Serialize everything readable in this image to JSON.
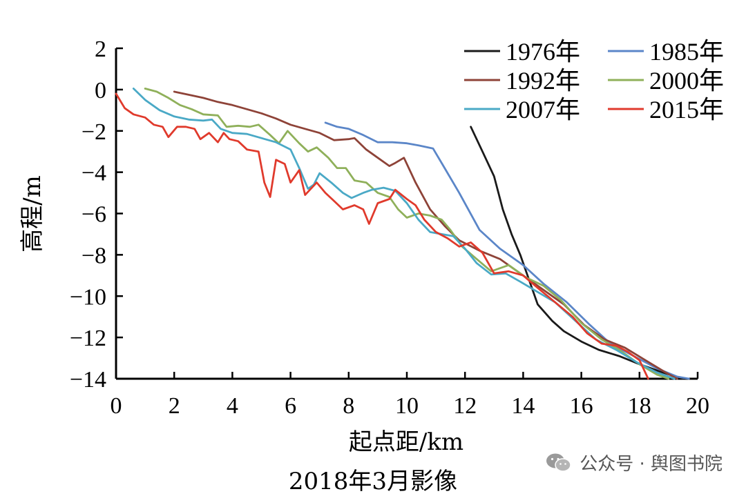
{
  "chart_data": {
    "type": "line",
    "title": "",
    "xlabel": "起点距/km",
    "ylabel": "高程/m",
    "xlim": [
      0,
      20
    ],
    "ylim": [
      -14,
      2
    ],
    "xticks": [
      "0",
      "2",
      "4",
      "6",
      "8",
      "10",
      "12",
      "14",
      "16",
      "18",
      "20"
    ],
    "yticks": [
      "2",
      "0",
      "−2",
      "−4",
      "−6",
      "−8",
      "−10",
      "−12",
      "−14"
    ],
    "grid": false,
    "legend_position": "top-right",
    "series": [
      {
        "name": "1976年",
        "color": "#1a1a1a",
        "points": [
          [
            12.2,
            -1.8
          ],
          [
            12.6,
            -3.0
          ],
          [
            13.0,
            -4.2
          ],
          [
            13.3,
            -5.8
          ],
          [
            13.6,
            -7.0
          ],
          [
            13.9,
            -8.0
          ],
          [
            14.2,
            -9.2
          ],
          [
            14.5,
            -10.4
          ],
          [
            15.0,
            -11.2
          ],
          [
            15.4,
            -11.7
          ],
          [
            16.0,
            -12.2
          ],
          [
            16.6,
            -12.6
          ],
          [
            17.3,
            -12.9
          ],
          [
            18.0,
            -13.3
          ],
          [
            18.8,
            -13.7
          ],
          [
            19.5,
            -14.0
          ]
        ]
      },
      {
        "name": "1985年",
        "color": "#5b86c8",
        "points": [
          [
            7.2,
            -1.6
          ],
          [
            7.6,
            -1.8
          ],
          [
            8.0,
            -1.9
          ],
          [
            8.5,
            -2.2
          ],
          [
            9.0,
            -2.55
          ],
          [
            9.5,
            -2.55
          ],
          [
            10.0,
            -2.6
          ],
          [
            10.4,
            -2.7
          ],
          [
            10.9,
            -2.85
          ],
          [
            11.3,
            -3.8
          ],
          [
            11.8,
            -5.0
          ],
          [
            12.5,
            -6.8
          ],
          [
            13.2,
            -7.7
          ],
          [
            14.0,
            -8.5
          ],
          [
            14.7,
            -9.4
          ],
          [
            15.5,
            -10.3
          ],
          [
            16.3,
            -11.4
          ],
          [
            17.0,
            -12.3
          ],
          [
            17.8,
            -12.9
          ],
          [
            18.6,
            -13.5
          ],
          [
            19.3,
            -13.9
          ],
          [
            19.7,
            -14.0
          ]
        ]
      },
      {
        "name": "1992年",
        "color": "#8e4338",
        "points": [
          [
            2.0,
            -0.1
          ],
          [
            2.5,
            -0.25
          ],
          [
            3.0,
            -0.4
          ],
          [
            3.5,
            -0.6
          ],
          [
            4.0,
            -0.75
          ],
          [
            4.5,
            -0.95
          ],
          [
            5.0,
            -1.15
          ],
          [
            5.5,
            -1.4
          ],
          [
            6.0,
            -1.7
          ],
          [
            6.5,
            -1.9
          ],
          [
            7.0,
            -2.1
          ],
          [
            7.5,
            -2.45
          ],
          [
            8.0,
            -2.4
          ],
          [
            8.2,
            -2.35
          ],
          [
            8.6,
            -2.9
          ],
          [
            9.0,
            -3.3
          ],
          [
            9.4,
            -3.7
          ],
          [
            9.6,
            -3.55
          ],
          [
            9.9,
            -3.3
          ],
          [
            10.3,
            -4.5
          ],
          [
            10.8,
            -5.8
          ],
          [
            11.3,
            -6.6
          ],
          [
            11.8,
            -7.3
          ],
          [
            12.5,
            -7.8
          ],
          [
            13.2,
            -8.2
          ],
          [
            14.0,
            -9.0
          ],
          [
            14.7,
            -9.7
          ],
          [
            15.4,
            -10.4
          ],
          [
            16.1,
            -11.4
          ],
          [
            16.8,
            -12.1
          ],
          [
            17.5,
            -12.5
          ],
          [
            18.2,
            -13.1
          ],
          [
            18.9,
            -13.7
          ],
          [
            19.3,
            -14.0
          ]
        ]
      },
      {
        "name": "2000年",
        "color": "#8fb05a",
        "points": [
          [
            1.0,
            0.05
          ],
          [
            1.4,
            -0.1
          ],
          [
            1.8,
            -0.4
          ],
          [
            2.2,
            -0.75
          ],
          [
            2.6,
            -0.95
          ],
          [
            3.0,
            -1.2
          ],
          [
            3.5,
            -1.25
          ],
          [
            3.8,
            -1.8
          ],
          [
            4.2,
            -1.75
          ],
          [
            4.6,
            -1.8
          ],
          [
            4.9,
            -1.7
          ],
          [
            5.3,
            -2.2
          ],
          [
            5.6,
            -2.6
          ],
          [
            5.9,
            -2.0
          ],
          [
            6.3,
            -2.6
          ],
          [
            6.6,
            -3.0
          ],
          [
            6.9,
            -2.8
          ],
          [
            7.3,
            -3.3
          ],
          [
            7.6,
            -3.8
          ],
          [
            7.9,
            -3.8
          ],
          [
            8.2,
            -4.4
          ],
          [
            8.6,
            -4.5
          ],
          [
            9.0,
            -5.0
          ],
          [
            9.4,
            -5.2
          ],
          [
            9.7,
            -5.8
          ],
          [
            10.0,
            -6.2
          ],
          [
            10.4,
            -6.0
          ],
          [
            10.8,
            -6.1
          ],
          [
            11.2,
            -6.3
          ],
          [
            11.5,
            -6.8
          ],
          [
            11.9,
            -7.6
          ],
          [
            12.4,
            -8.2
          ],
          [
            12.9,
            -8.8
          ],
          [
            13.5,
            -8.5
          ],
          [
            14.1,
            -9.1
          ],
          [
            14.7,
            -9.5
          ],
          [
            15.3,
            -10.2
          ],
          [
            16.0,
            -11.3
          ],
          [
            16.7,
            -12.1
          ],
          [
            17.3,
            -12.6
          ],
          [
            18.0,
            -13.3
          ],
          [
            18.6,
            -13.8
          ],
          [
            19.0,
            -14.0
          ]
        ]
      },
      {
        "name": "2007年",
        "color": "#4aa9c6",
        "points": [
          [
            0.6,
            0.05
          ],
          [
            1.0,
            -0.5
          ],
          [
            1.5,
            -1.0
          ],
          [
            2.0,
            -1.3
          ],
          [
            2.5,
            -1.45
          ],
          [
            3.0,
            -1.5
          ],
          [
            3.3,
            -1.45
          ],
          [
            3.6,
            -1.9
          ],
          [
            4.0,
            -2.1
          ],
          [
            4.5,
            -2.15
          ],
          [
            5.0,
            -2.35
          ],
          [
            5.5,
            -2.55
          ],
          [
            6.0,
            -2.9
          ],
          [
            6.3,
            -3.8
          ],
          [
            6.6,
            -4.8
          ],
          [
            6.8,
            -4.6
          ],
          [
            7.0,
            -4.05
          ],
          [
            7.4,
            -4.5
          ],
          [
            7.8,
            -5.0
          ],
          [
            8.1,
            -5.25
          ],
          [
            8.5,
            -5.0
          ],
          [
            8.8,
            -4.85
          ],
          [
            9.2,
            -4.75
          ],
          [
            9.6,
            -4.9
          ],
          [
            10.0,
            -5.5
          ],
          [
            10.4,
            -6.3
          ],
          [
            10.8,
            -6.9
          ],
          [
            11.2,
            -7.0
          ],
          [
            11.6,
            -7.1
          ],
          [
            12.0,
            -7.7
          ],
          [
            12.4,
            -8.4
          ],
          [
            12.9,
            -8.95
          ],
          [
            13.4,
            -8.9
          ],
          [
            13.9,
            -9.3
          ],
          [
            14.5,
            -9.8
          ],
          [
            15.1,
            -10.3
          ],
          [
            15.8,
            -11.2
          ],
          [
            16.5,
            -12.1
          ],
          [
            17.2,
            -12.6
          ],
          [
            17.9,
            -13.2
          ],
          [
            18.6,
            -13.7
          ],
          [
            19.2,
            -14.0
          ]
        ]
      },
      {
        "name": "2015年",
        "color": "#e03a2c",
        "points": [
          [
            0.0,
            -0.2
          ],
          [
            0.3,
            -0.9
          ],
          [
            0.6,
            -1.2
          ],
          [
            1.0,
            -1.35
          ],
          [
            1.3,
            -1.7
          ],
          [
            1.6,
            -1.8
          ],
          [
            1.8,
            -2.3
          ],
          [
            2.1,
            -1.8
          ],
          [
            2.4,
            -1.8
          ],
          [
            2.7,
            -1.9
          ],
          [
            2.9,
            -2.4
          ],
          [
            3.2,
            -2.1
          ],
          [
            3.5,
            -2.55
          ],
          [
            3.7,
            -2.1
          ],
          [
            3.9,
            -2.4
          ],
          [
            4.2,
            -2.5
          ],
          [
            4.5,
            -2.9
          ],
          [
            4.9,
            -3.0
          ],
          [
            5.1,
            -4.5
          ],
          [
            5.3,
            -5.2
          ],
          [
            5.5,
            -3.4
          ],
          [
            5.8,
            -3.6
          ],
          [
            6.0,
            -4.5
          ],
          [
            6.3,
            -3.9
          ],
          [
            6.5,
            -5.1
          ],
          [
            6.9,
            -4.5
          ],
          [
            7.2,
            -5.0
          ],
          [
            7.5,
            -5.4
          ],
          [
            7.8,
            -5.8
          ],
          [
            8.2,
            -5.6
          ],
          [
            8.5,
            -5.8
          ],
          [
            8.7,
            -6.5
          ],
          [
            9.0,
            -5.5
          ],
          [
            9.4,
            -5.3
          ],
          [
            9.6,
            -4.85
          ],
          [
            10.0,
            -5.3
          ],
          [
            10.3,
            -5.6
          ],
          [
            10.6,
            -6.3
          ],
          [
            11.0,
            -6.9
          ],
          [
            11.4,
            -7.2
          ],
          [
            11.8,
            -7.6
          ],
          [
            12.2,
            -7.4
          ],
          [
            12.6,
            -7.9
          ],
          [
            13.0,
            -8.9
          ],
          [
            13.5,
            -8.8
          ],
          [
            14.0,
            -9.0
          ],
          [
            14.5,
            -9.6
          ],
          [
            15.1,
            -10.3
          ],
          [
            15.7,
            -11.0
          ],
          [
            16.2,
            -11.8
          ],
          [
            16.7,
            -12.3
          ],
          [
            17.2,
            -12.4
          ],
          [
            17.6,
            -12.7
          ],
          [
            18.0,
            -13.1
          ],
          [
            18.3,
            -14.0
          ]
        ]
      }
    ]
  },
  "caption": "2018年3月影像",
  "watermark": {
    "text": "公众号 · 舆图书院",
    "icon": "wechat-icon"
  }
}
